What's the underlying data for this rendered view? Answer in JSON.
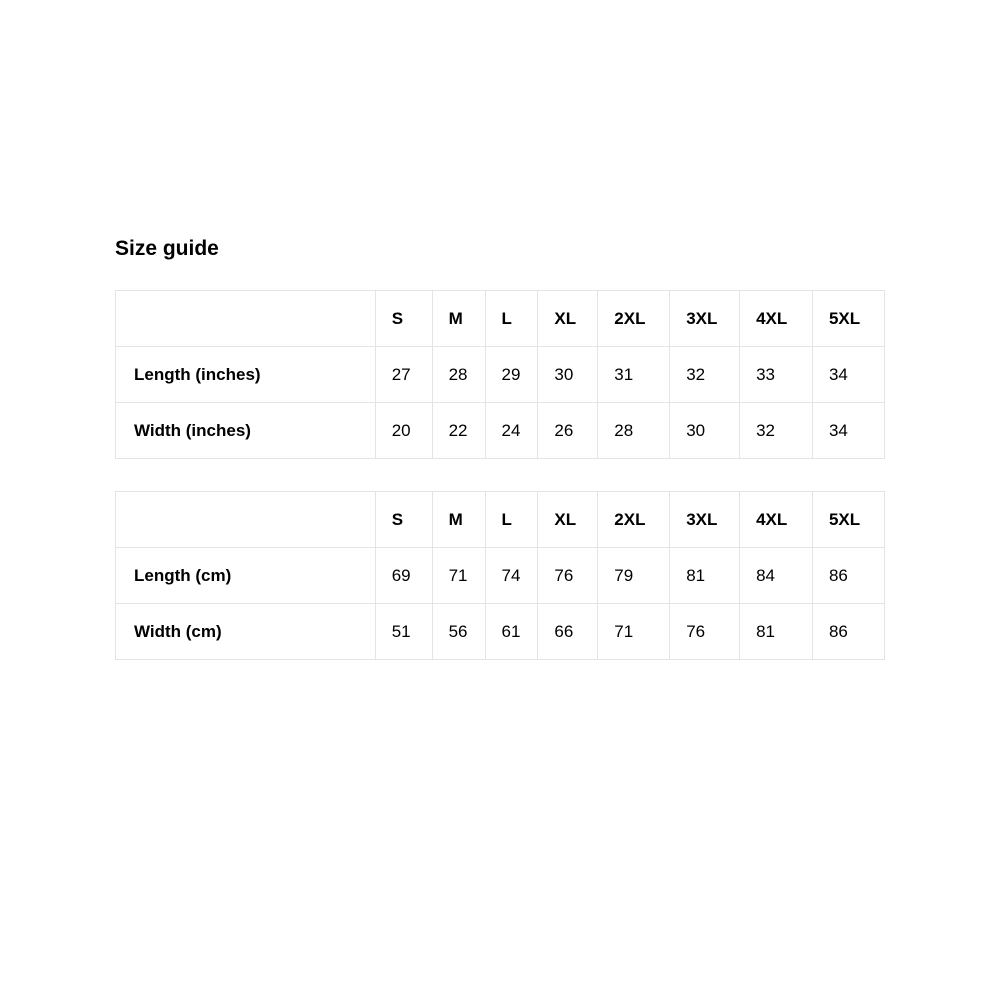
{
  "title": "Size guide",
  "colors": {
    "text": "#000000",
    "border": "#e4e4e4",
    "background": "#ffffff"
  },
  "chart_data": [
    {
      "type": "table",
      "id": "size-table-inches",
      "columns": [
        "",
        "S",
        "M",
        "L",
        "XL",
        "2XL",
        "3XL",
        "4XL",
        "5XL"
      ],
      "rows": [
        {
          "label": "Length (inches)",
          "values": [
            "27",
            "28",
            "29",
            "30",
            "31",
            "32",
            "33",
            "34"
          ]
        },
        {
          "label": "Width (inches)",
          "values": [
            "20",
            "22",
            "24",
            "26",
            "28",
            "30",
            "32",
            "34"
          ]
        }
      ]
    },
    {
      "type": "table",
      "id": "size-table-cm",
      "columns": [
        "",
        "S",
        "M",
        "L",
        "XL",
        "2XL",
        "3XL",
        "4XL",
        "5XL"
      ],
      "rows": [
        {
          "label": "Length (cm)",
          "values": [
            "69",
            "71",
            "74",
            "76",
            "79",
            "81",
            "84",
            "86"
          ]
        },
        {
          "label": "Width (cm)",
          "values": [
            "51",
            "56",
            "61",
            "66",
            "71",
            "76",
            "81",
            "86"
          ]
        }
      ]
    }
  ]
}
